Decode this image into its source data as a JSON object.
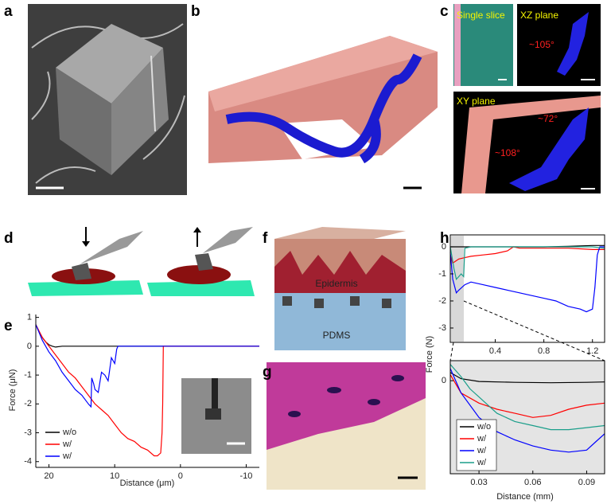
{
  "figure": {
    "panel_labels": [
      "a",
      "b",
      "c",
      "d",
      "e",
      "f",
      "g",
      "h"
    ],
    "panel_c": {
      "single_slice": "Single slice",
      "xz_plane": "XZ plane",
      "xy_plane": "XY plane",
      "angle_xz": "~105°",
      "angle_xy_1": "~72°",
      "angle_xy_2": "~108°"
    },
    "panel_f": {
      "top_layer": "Epidermis",
      "bottom_layer": "PDMS"
    }
  },
  "chart_data": [
    {
      "type": "line",
      "ylabel": "Force (μN)",
      "xlabel": "Distance (μm)",
      "xlim": [
        22,
        -12
      ],
      "ylim": [
        -4.2,
        1.1
      ],
      "xticks": [
        20,
        10,
        0,
        -10
      ],
      "yticks": [
        1,
        0,
        -1,
        -2,
        -3,
        -4
      ],
      "legend": "lower left",
      "series": [
        {
          "name": "w/o",
          "color": "#000000",
          "x": [
            22,
            21.5,
            21,
            20.5,
            20,
            19.5,
            19,
            18,
            15,
            10,
            5,
            0,
            -5,
            -10,
            -12
          ],
          "values": [
            0.75,
            0.5,
            0.3,
            0.15,
            0.05,
            0,
            -0.03,
            0,
            0,
            0,
            0,
            0,
            0,
            0,
            0
          ]
        },
        {
          "name": "w/",
          "color": "#ff0000",
          "x": [
            22,
            21,
            20,
            19,
            18,
            17,
            16,
            15,
            14,
            13,
            12,
            11,
            10,
            9,
            8,
            7,
            6,
            5,
            4,
            3.5,
            3,
            2.8,
            2.7,
            2.6,
            2,
            0,
            -5,
            -10,
            -12
          ],
          "values": [
            0.75,
            0.3,
            0.0,
            -0.3,
            -0.6,
            -0.9,
            -1.1,
            -1.4,
            -1.7,
            -2.0,
            -2.2,
            -2.4,
            -2.7,
            -3.0,
            -3.2,
            -3.3,
            -3.5,
            -3.6,
            -3.8,
            -3.8,
            -3.7,
            -3.0,
            -2.0,
            0,
            0,
            0,
            0,
            0,
            0
          ]
        },
        {
          "name": "w/",
          "color": "#0000ff",
          "x": [
            22,
            21,
            20,
            19,
            18,
            17,
            16,
            15,
            14,
            13.6,
            13.5,
            13.2,
            13,
            12.5,
            12,
            11.5,
            11,
            10.5,
            10,
            9.7,
            9.5,
            9,
            5,
            0,
            -5,
            -10,
            -12
          ],
          "values": [
            0.75,
            0.2,
            -0.2,
            -0.5,
            -0.9,
            -1.2,
            -1.5,
            -1.7,
            -2.0,
            -2.1,
            -1.1,
            -1.3,
            -1.5,
            -1.6,
            -0.9,
            -1.0,
            -1.2,
            -0.4,
            -0.6,
            -0.1,
            0,
            0,
            0,
            0,
            0,
            0,
            0
          ]
        }
      ]
    },
    {
      "type": "line",
      "ylabel": "Force (N)",
      "xlim": [
        0.03,
        1.3
      ],
      "ylim": [
        -3.53,
        0.44
      ],
      "xticks": [
        0.4,
        0.8,
        1.2
      ],
      "yticks": [
        0,
        -1,
        -2,
        -3
      ],
      "series": [
        {
          "color": "#000000",
          "x": [
            0.03,
            0.2,
            0.4,
            0.6,
            0.8,
            1.0,
            1.2,
            1.3
          ],
          "values": [
            0,
            0,
            0,
            0,
            0,
            0.02,
            0.05,
            0.05
          ]
        },
        {
          "color": "#ff0000",
          "x": [
            0.03,
            0.05,
            0.1,
            0.15,
            0.2,
            0.3,
            0.4,
            0.5,
            0.55,
            0.6,
            0.8,
            1.0,
            1.2,
            1.3
          ],
          "values": [
            -0.3,
            -0.6,
            -0.45,
            -0.4,
            -0.35,
            -0.3,
            -0.25,
            -0.15,
            0,
            -0.05,
            -0.05,
            -0.05,
            -0.1,
            -0.1
          ]
        },
        {
          "color": "#0000ff",
          "x": [
            0.03,
            0.05,
            0.08,
            0.1,
            0.15,
            0.2,
            0.3,
            0.4,
            0.5,
            0.6,
            0.7,
            0.8,
            0.9,
            1.0,
            1.1,
            1.15,
            1.2,
            1.22,
            1.24,
            1.26,
            1.3
          ],
          "values": [
            -0.2,
            -1.2,
            -1.7,
            -1.6,
            -1.4,
            -1.3,
            -1.4,
            -1.5,
            -1.6,
            -1.7,
            -1.8,
            -1.9,
            -2.0,
            -2.2,
            -2.3,
            -2.4,
            -2.3,
            -1.5,
            -0.3,
            0,
            0
          ]
        },
        {
          "color": "#1a9e8a",
          "x": [
            0.03,
            0.06,
            0.08,
            0.1,
            0.12,
            0.14,
            0.15,
            0.2,
            0.4,
            0.6,
            0.8,
            1.0,
            1.2,
            1.3
          ],
          "values": [
            0,
            -0.8,
            -1.2,
            -1.1,
            -1.0,
            -1.1,
            -0.05,
            0,
            0,
            0,
            0,
            0,
            0,
            -0.05
          ]
        }
      ]
    },
    {
      "type": "line",
      "xlabel": "Distance (mm)",
      "xlim": [
        0.014,
        0.1
      ],
      "ylim": [
        -2.28,
        0.49
      ],
      "xticks": [
        0.03,
        0.06,
        0.09
      ],
      "yticks": [
        0
      ],
      "legend": "lower left",
      "series": [
        {
          "name": "w/o",
          "color": "#000000",
          "x": [
            0.014,
            0.02,
            0.03,
            0.05,
            0.07,
            0.09,
            0.1
          ],
          "values": [
            0.2,
            0.05,
            -0.02,
            -0.04,
            -0.05,
            -0.04,
            -0.03
          ]
        },
        {
          "name": "w/",
          "color": "#ff0000",
          "x": [
            0.014,
            0.02,
            0.03,
            0.04,
            0.05,
            0.06,
            0.07,
            0.08,
            0.09,
            0.1
          ],
          "values": [
            0.15,
            -0.3,
            -0.55,
            -0.7,
            -0.8,
            -0.9,
            -0.85,
            -0.7,
            -0.6,
            -0.55
          ]
        },
        {
          "name": "w/",
          "color": "#0000ff",
          "x": [
            0.014,
            0.02,
            0.03,
            0.04,
            0.05,
            0.06,
            0.07,
            0.08,
            0.09,
            0.095,
            0.1
          ],
          "values": [
            0.3,
            -0.3,
            -0.9,
            -1.25,
            -1.45,
            -1.6,
            -1.7,
            -1.75,
            -1.7,
            -1.5,
            -1.3
          ]
        },
        {
          "name": "w/",
          "color": "#1a9e8a",
          "x": [
            0.014,
            0.02,
            0.025,
            0.03,
            0.04,
            0.05,
            0.06,
            0.07,
            0.08,
            0.09,
            0.1
          ],
          "values": [
            0.4,
            0.1,
            -0.2,
            -0.4,
            -0.8,
            -1.0,
            -1.1,
            -1.2,
            -1.2,
            -1.15,
            -1.1
          ]
        }
      ]
    }
  ]
}
